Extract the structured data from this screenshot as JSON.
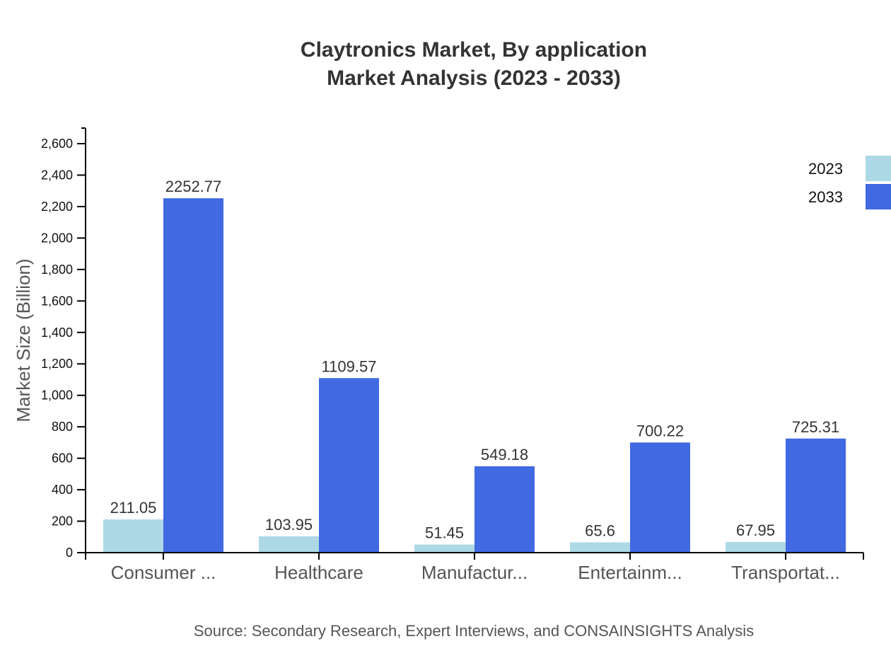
{
  "chart_data": {
    "type": "bar",
    "title": "Claytronics Market, By application",
    "subtitle": "Market Analysis (2023 - 2033)",
    "xlabel": "",
    "ylabel": "Market Size (Billion)",
    "categories": [
      "Consumer ...",
      "Healthcare",
      "Manufactur...",
      "Entertainm...",
      "Transportat..."
    ],
    "series": [
      {
        "name": "2023",
        "color": "#add8e6",
        "values": [
          211.05,
          103.95,
          51.45,
          65.6,
          67.95
        ]
      },
      {
        "name": "2033",
        "color": "#4169e1",
        "values": [
          2252.77,
          1109.57,
          549.18,
          700.22,
          725.31
        ]
      }
    ],
    "ylim": [
      0,
      2700
    ],
    "yticks": [
      0,
      200,
      400,
      600,
      800,
      1000,
      1200,
      1400,
      1600,
      1800,
      2000,
      2200,
      2400,
      2600
    ],
    "ytick_labels": [
      "0",
      "200",
      "400",
      "600",
      "800",
      "1,000",
      "1,200",
      "1,400",
      "1,600",
      "1,800",
      "2,000",
      "2,200",
      "2,400",
      "2,600"
    ],
    "grid": false,
    "legend_position": "top-right",
    "source": "Source: Secondary Research, Expert Interviews, and CONSAINSIGHTS Analysis"
  }
}
